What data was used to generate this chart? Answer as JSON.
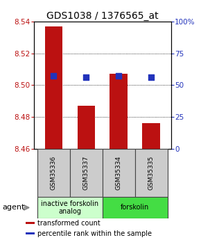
{
  "title": "GDS1038 / 1376565_at",
  "samples": [
    "GSM35336",
    "GSM35337",
    "GSM35334",
    "GSM35335"
  ],
  "bar_values": [
    8.537,
    8.487,
    8.507,
    8.476
  ],
  "blue_values": [
    8.506,
    8.505,
    8.506,
    8.505
  ],
  "ylim": [
    8.46,
    8.54
  ],
  "yticks": [
    8.46,
    8.48,
    8.5,
    8.52,
    8.54
  ],
  "right_ylim": [
    0,
    100
  ],
  "right_yticks": [
    0,
    25,
    50,
    75,
    100
  ],
  "right_yticklabels": [
    "0",
    "25",
    "50",
    "75",
    "100%"
  ],
  "bar_color": "#bb1111",
  "blue_color": "#2233bb",
  "bar_width": 0.55,
  "groups": [
    {
      "label": "inactive forskolin\nanalog",
      "indices": [
        0,
        1
      ],
      "color": "#ccffcc"
    },
    {
      "label": "forskolin",
      "indices": [
        2,
        3
      ],
      "color": "#44dd44"
    }
  ],
  "agent_label": "agent",
  "legend_items": [
    {
      "label": "transformed count",
      "color": "#bb1111"
    },
    {
      "label": "percentile rank within the sample",
      "color": "#2233bb"
    }
  ],
  "title_fontsize": 10,
  "tick_fontsize": 7.5,
  "sample_fontsize": 6.5,
  "group_fontsize": 7,
  "legend_fontsize": 7
}
